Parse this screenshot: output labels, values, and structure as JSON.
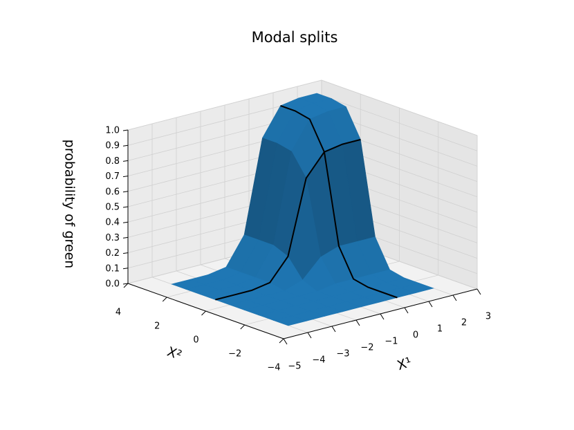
{
  "chart_data": {
    "type": "surface",
    "title": "Modal splits",
    "xlabel": "X¹",
    "ylabel": "X²",
    "zlabel": "probability of green",
    "xlim": [
      -5,
      3
    ],
    "ylim": [
      -4,
      4
    ],
    "zlim": [
      0,
      1
    ],
    "xticks": [
      {
        "value": -5,
        "label": "−5"
      },
      {
        "value": -4,
        "label": "−4"
      },
      {
        "value": -3,
        "label": "−3"
      },
      {
        "value": -2,
        "label": "−2"
      },
      {
        "value": -1,
        "label": "−1"
      },
      0,
      1,
      2,
      3
    ],
    "yticks": [
      {
        "value": -4,
        "label": "−4"
      },
      {
        "value": -2,
        "label": "−2"
      },
      0,
      2,
      4
    ],
    "zticks": [
      {
        "value": 0,
        "label": "0.0"
      },
      0.1,
      0.2,
      0.3,
      0.4,
      0.5,
      0.6,
      0.7,
      0.8,
      0.9,
      {
        "value": 1,
        "label": "1.0"
      }
    ],
    "grid": true,
    "color": "#1f77b4",
    "x": [
      -4,
      -3.25,
      -2.5,
      -1.75,
      -1,
      -0.25,
      0.5,
      1.25,
      2
    ],
    "y": [
      -3,
      -2.25,
      -1.5,
      -0.75,
      0,
      0.75,
      1.5,
      2.25,
      3
    ],
    "z": [
      [
        0,
        0,
        0,
        0,
        0,
        0,
        0,
        0,
        0
      ],
      [
        0,
        0,
        0,
        0,
        0,
        0,
        0,
        0,
        0
      ],
      [
        0,
        0,
        0,
        0,
        0,
        0,
        0,
        0,
        0
      ],
      [
        0,
        0,
        0,
        0,
        0,
        0.02,
        0.02,
        0.02,
        0.02
      ],
      [
        0,
        0,
        0,
        0,
        0.04,
        0.16,
        0.2,
        0.2,
        0.2
      ],
      [
        0,
        0,
        0,
        0.02,
        0.16,
        0.64,
        0.78,
        0.8,
        0.8
      ],
      [
        0,
        0,
        0,
        0.02,
        0.2,
        0.78,
        0.96,
        0.98,
        0.98
      ],
      [
        0,
        0,
        0,
        0.02,
        0.2,
        0.8,
        0.98,
        1,
        1
      ],
      [
        0,
        0,
        0,
        0.02,
        0.2,
        0.8,
        0.98,
        1,
        1
      ]
    ],
    "curves": [
      {
        "color": "black",
        "x": [
          -4,
          -3.25,
          -2.5,
          -1.75,
          -1,
          -0.25,
          0.5,
          1.25,
          2
        ],
        "y": [
          0.75,
          0.75,
          0.75,
          0.75,
          0.75,
          0.75,
          0.75,
          0.75,
          0.75
        ],
        "z": [
          0,
          0,
          0,
          0.02,
          0.16,
          0.64,
          0.78,
          0.8,
          0.8
        ]
      },
      {
        "color": "black",
        "x": [
          0.5,
          0.5,
          0.5,
          0.5,
          0.5,
          0.5,
          0.5,
          0.5,
          0.5
        ],
        "y": [
          -3,
          -2.25,
          -1.5,
          -0.75,
          0,
          0.75,
          1.5,
          2.25,
          3
        ],
        "z": [
          0,
          0,
          0,
          0.02,
          0.2,
          0.78,
          0.96,
          0.98,
          0.98
        ]
      }
    ]
  }
}
